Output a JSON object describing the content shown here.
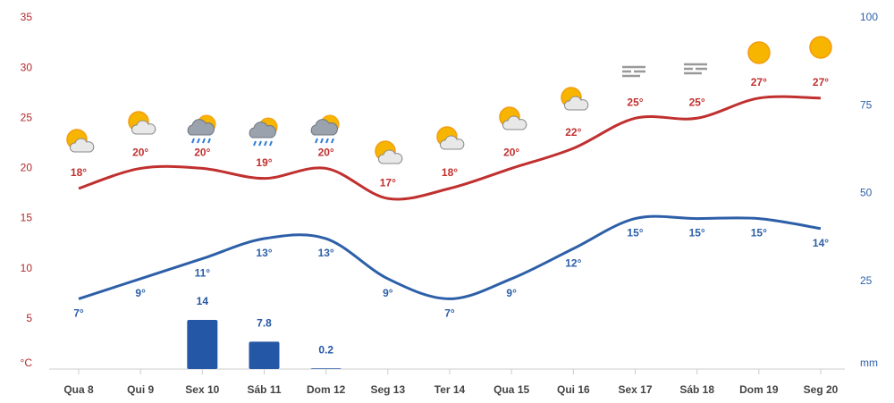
{
  "chart_data": {
    "type": "line",
    "categories": [
      "Qua 8",
      "Qui 9",
      "Sex 10",
      "Sáb 11",
      "Dom 12",
      "Seg 13",
      "Ter 14",
      "Qua 15",
      "Qui 16",
      "Sex 17",
      "Sáb 18",
      "Dom 19",
      "Seg 20"
    ],
    "ylim": [
      0,
      35
    ],
    "yticks": [
      {
        "value": 0,
        "label": "°C"
      },
      5,
      10,
      15,
      20,
      25,
      30,
      35
    ],
    "y2lim": [
      0,
      100
    ],
    "y2ticks": [
      {
        "value": 0,
        "label": "mm"
      },
      25,
      50,
      75,
      100
    ],
    "series": [
      {
        "type": "line",
        "color": "#c0302f",
        "label_side": "above",
        "values": [
          18,
          20,
          20,
          19,
          20,
          17,
          18,
          20,
          22,
          25,
          25,
          27,
          27
        ],
        "value_labels": [
          "18°",
          "20°",
          "20°",
          "19°",
          "20°",
          "17°",
          "18°",
          "20°",
          "22°",
          "25°",
          "25°",
          "27°",
          "27°"
        ]
      },
      {
        "type": "line",
        "color": "#2d5fa8",
        "label_side": "below",
        "values": [
          7,
          9,
          11,
          13,
          13,
          9,
          7,
          9,
          12,
          15,
          15,
          15,
          14
        ],
        "value_labels": [
          "7°",
          "9°",
          "11°",
          "13°",
          "13°",
          "9°",
          "7°",
          "9°",
          "12°",
          "15°",
          "15°",
          "15°",
          "14°"
        ]
      },
      {
        "type": "bar",
        "axis": "y2",
        "color": "#2457a5",
        "values": [
          null,
          null,
          14,
          7.8,
          0.2,
          null,
          null,
          null,
          null,
          null,
          null,
          null,
          null
        ]
      }
    ]
  }
}
